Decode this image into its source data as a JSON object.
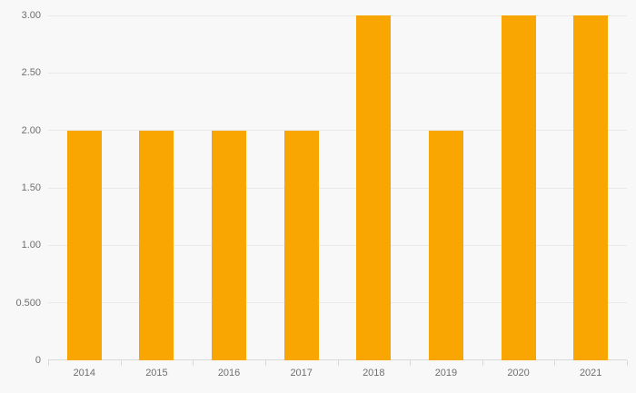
{
  "chart_data": {
    "type": "bar",
    "title": "",
    "categories": [
      "2014",
      "2015",
      "2016",
      "2017",
      "2018",
      "2019",
      "2020",
      "2021"
    ],
    "values": [
      2,
      2,
      2,
      2,
      3,
      2,
      3,
      3
    ],
    "series": [
      {
        "name": "",
        "values": [
          2,
          2,
          2,
          2,
          3,
          2,
          3,
          3
        ]
      }
    ],
    "xlabel": "",
    "ylabel": "",
    "ylim": [
      0,
      3
    ],
    "y_ticks": [
      {
        "value": 0,
        "label": "0"
      },
      {
        "value": 0.5,
        "label": "0.500"
      },
      {
        "value": 1,
        "label": "1.00"
      },
      {
        "value": 1.5,
        "label": "1.50"
      },
      {
        "value": 2,
        "label": "2.00"
      },
      {
        "value": 2.5,
        "label": "2.50"
      },
      {
        "value": 3,
        "label": "3.00"
      }
    ],
    "grid": true,
    "legend": false,
    "colors": {
      "bar": "#F9A602",
      "background": "#f8f8f8",
      "gridline": "#e9e9e9",
      "axis_line": "#d9d9d9",
      "label_text": "#6f6f6f"
    }
  }
}
